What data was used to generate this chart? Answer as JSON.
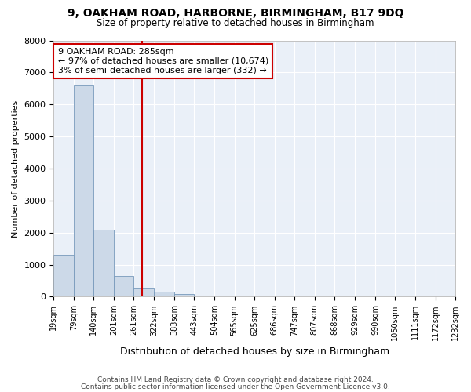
{
  "title1": "9, OAKHAM ROAD, HARBORNE, BIRMINGHAM, B17 9DQ",
  "title2": "Size of property relative to detached houses in Birmingham",
  "xlabel": "Distribution of detached houses by size in Birmingham",
  "ylabel": "Number of detached properties",
  "property_size": 285,
  "annotation_line1": "9 OAKHAM ROAD: 285sqm",
  "annotation_line2": "← 97% of detached houses are smaller (10,674)",
  "annotation_line3": "3% of semi-detached houses are larger (332) →",
  "bar_color": "#ccd9e8",
  "bar_edge_color": "#7799bb",
  "vline_color": "#cc0000",
  "box_edge_color": "#cc0000",
  "background_color": "#eaf0f8",
  "grid_color": "#ffffff",
  "footer1": "Contains HM Land Registry data © Crown copyright and database right 2024.",
  "footer2": "Contains public sector information licensed under the Open Government Licence v3.0.",
  "bin_labels": [
    "19sqm",
    "79sqm",
    "140sqm",
    "201sqm",
    "261sqm",
    "322sqm",
    "383sqm",
    "443sqm",
    "504sqm",
    "565sqm",
    "625sqm",
    "686sqm",
    "747sqm",
    "807sqm",
    "868sqm",
    "929sqm",
    "990sqm",
    "1050sqm",
    "1111sqm",
    "1172sqm",
    "1232sqm"
  ],
  "bin_edges": [
    19,
    79,
    140,
    201,
    261,
    322,
    383,
    443,
    504,
    565,
    625,
    686,
    747,
    807,
    868,
    929,
    990,
    1050,
    1111,
    1172,
    1232
  ],
  "bar_heights": [
    1300,
    6600,
    2100,
    650,
    290,
    150,
    80,
    30,
    10,
    3,
    1,
    0,
    0,
    0,
    0,
    0,
    0,
    0,
    0,
    0
  ],
  "ylim": [
    0,
    8000
  ],
  "yticks": [
    0,
    1000,
    2000,
    3000,
    4000,
    5000,
    6000,
    7000,
    8000
  ]
}
